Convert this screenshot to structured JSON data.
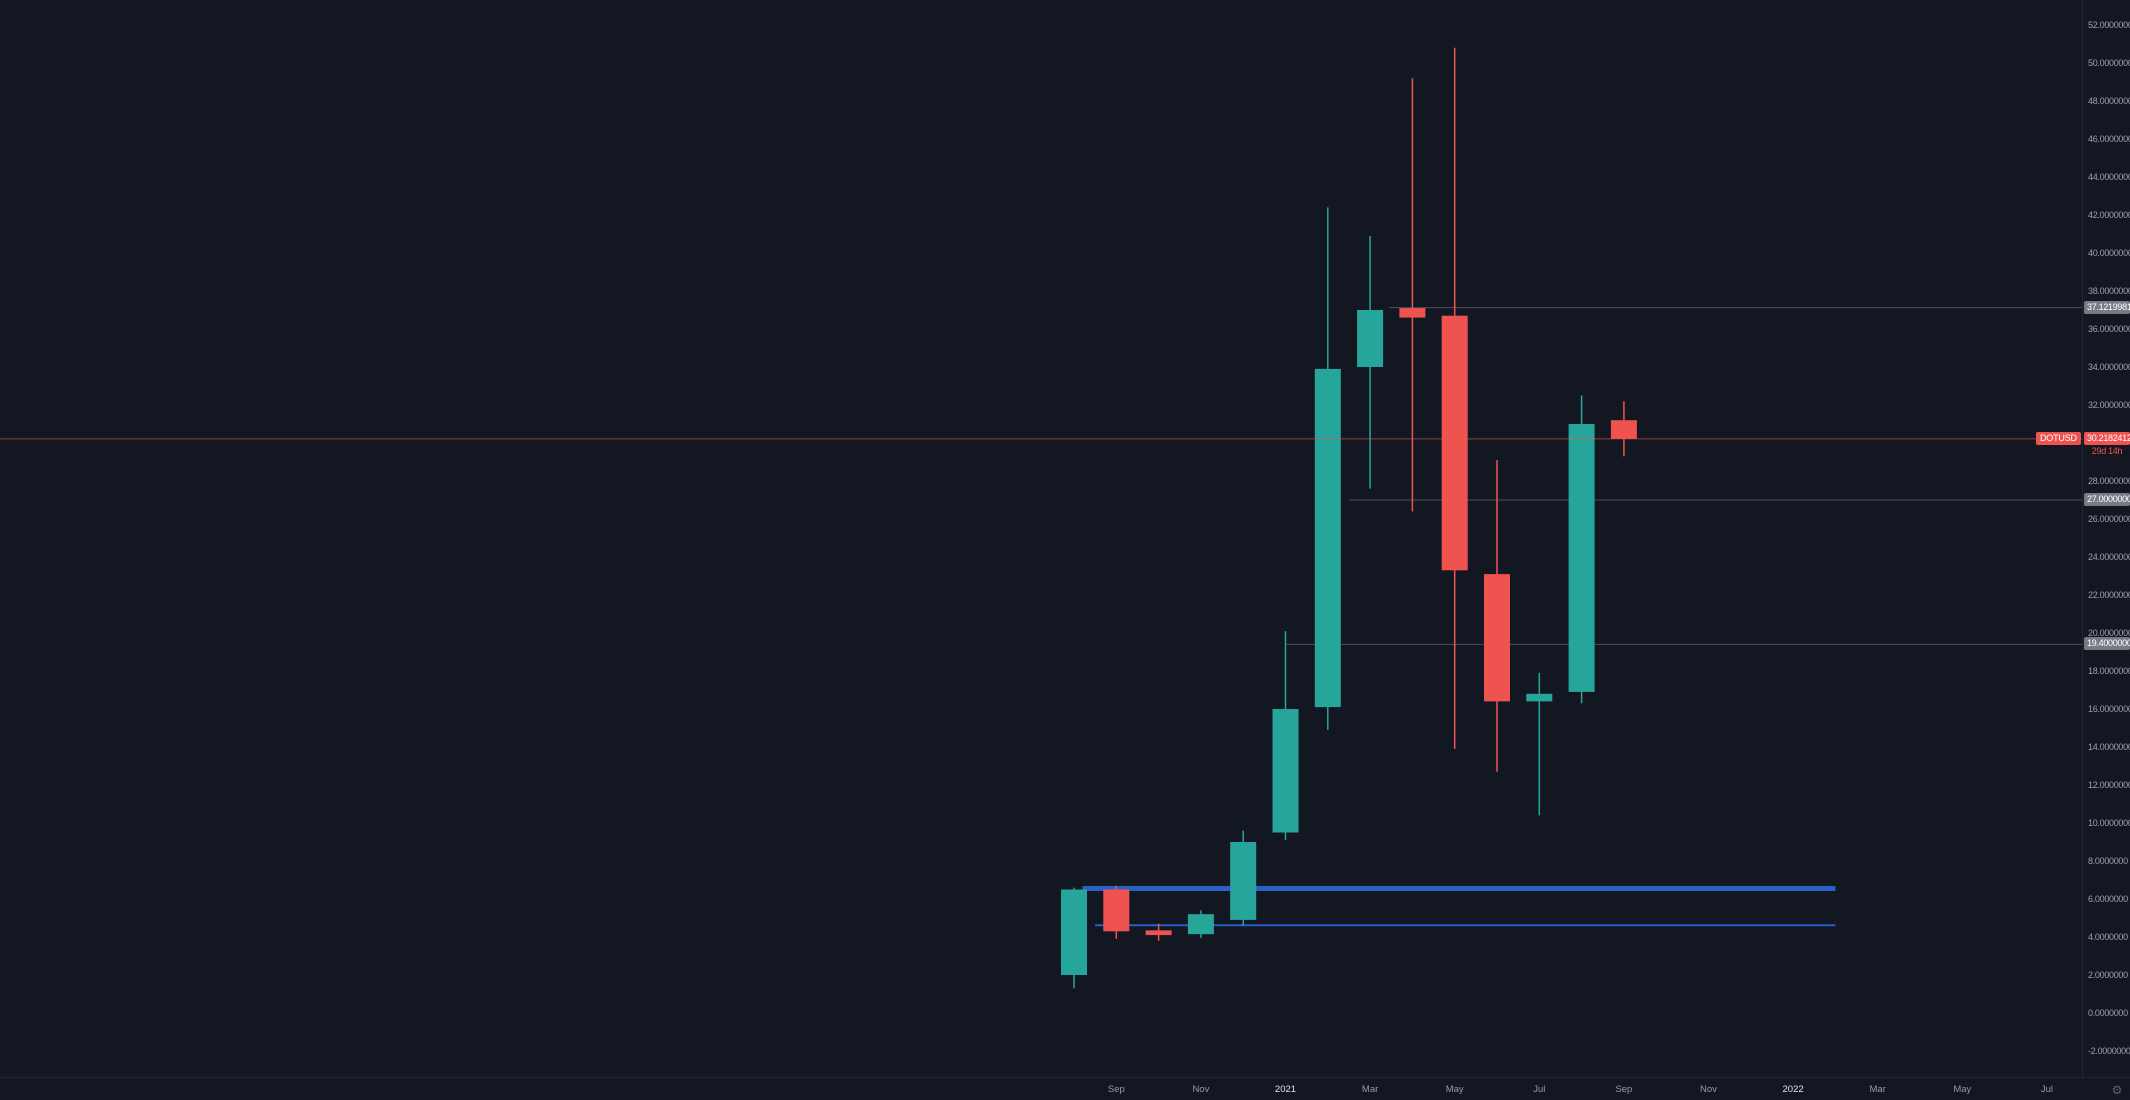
{
  "symbol": {
    "ticker_label": "DOTUSD",
    "current_price_label": "30.2182412",
    "countdown_label": "29d 14h"
  },
  "icons": {
    "gear": "⚙"
  },
  "colors": {
    "background": "#131722",
    "up": "#26a69a",
    "down": "#ef5350",
    "blue_line": "#2a5fc7",
    "gray_line": "#787b86",
    "axis_text": "#9ea1aa",
    "year_text": "#e3e5ea",
    "badge_gray_bg": "#787b86",
    "badge_red_bg": "#ef5350"
  },
  "chart_data": {
    "type": "candlestick",
    "symbol": "DOTUSD",
    "ylim": [
      -2,
      52
    ],
    "tick_format_decimals": 7,
    "price_ticks": [
      52,
      50,
      48,
      46,
      44,
      42,
      40,
      38,
      36,
      34,
      32,
      28,
      26,
      24,
      22,
      20,
      18,
      16,
      14,
      12,
      10,
      8,
      6,
      4,
      2,
      0,
      -2
    ],
    "time_ticks": [
      {
        "label": "Sep",
        "m": 1
      },
      {
        "label": "Nov",
        "m": 3
      },
      {
        "label": "2021",
        "m": 5,
        "major": true
      },
      {
        "label": "Mar",
        "m": 7
      },
      {
        "label": "May",
        "m": 9
      },
      {
        "label": "Jul",
        "m": 11
      },
      {
        "label": "Sep",
        "m": 13
      },
      {
        "label": "Nov",
        "m": 15
      },
      {
        "label": "2022",
        "m": 17,
        "major": true
      },
      {
        "label": "Mar",
        "m": 19
      },
      {
        "label": "May",
        "m": 21
      },
      {
        "label": "Jul",
        "m": 23
      }
    ],
    "candles": [
      {
        "m": 0,
        "o": 2.0,
        "h": 6.6,
        "l": 1.3,
        "c": 6.5
      },
      {
        "m": 1,
        "o": 6.5,
        "h": 6.7,
        "l": 3.9,
        "c": 4.3
      },
      {
        "m": 2,
        "o": 4.35,
        "h": 4.7,
        "l": 3.8,
        "c": 4.1
      },
      {
        "m": 3,
        "o": 4.15,
        "h": 5.4,
        "l": 3.95,
        "c": 5.2
      },
      {
        "m": 4,
        "o": 4.9,
        "h": 9.6,
        "l": 4.6,
        "c": 9.0
      },
      {
        "m": 5,
        "o": 9.5,
        "h": 20.1,
        "l": 9.1,
        "c": 16.0
      },
      {
        "m": 6,
        "o": 16.1,
        "h": 42.4,
        "l": 14.9,
        "c": 33.9
      },
      {
        "m": 7,
        "o": 34.0,
        "h": 40.9,
        "l": 27.6,
        "c": 37.0
      },
      {
        "m": 8,
        "o": 37.1,
        "h": 49.2,
        "l": 26.4,
        "c": 36.6
      },
      {
        "m": 9,
        "o": 36.7,
        "h": 50.8,
        "l": 13.9,
        "c": 23.3
      },
      {
        "m": 10,
        "o": 23.1,
        "h": 29.1,
        "l": 12.7,
        "c": 16.4
      },
      {
        "m": 11,
        "o": 16.4,
        "h": 17.9,
        "l": 10.4,
        "c": 16.8
      },
      {
        "m": 12,
        "o": 16.9,
        "h": 32.5,
        "l": 16.3,
        "c": 31.0
      },
      {
        "m": 13,
        "o": 31.2,
        "h": 32.2,
        "l": 29.3,
        "c": 30.2182412
      }
    ],
    "current_price": 30.2182412,
    "price_lines": [
      {
        "price": 37.1219981,
        "label": "37.1219981",
        "from_m": 7.45
      },
      {
        "price": 27.0,
        "label": "27.0000000",
        "from_m": 6.5
      },
      {
        "price": 19.4,
        "label": "19.4000000",
        "from_m": 5.0
      }
    ],
    "support_zones": [
      {
        "price": 6.55,
        "from_m": 0.2,
        "to_m": 18.0,
        "thickness": 5
      },
      {
        "price": 4.62,
        "from_m": 0.5,
        "to_m": 18.0,
        "thickness": 2
      }
    ]
  }
}
